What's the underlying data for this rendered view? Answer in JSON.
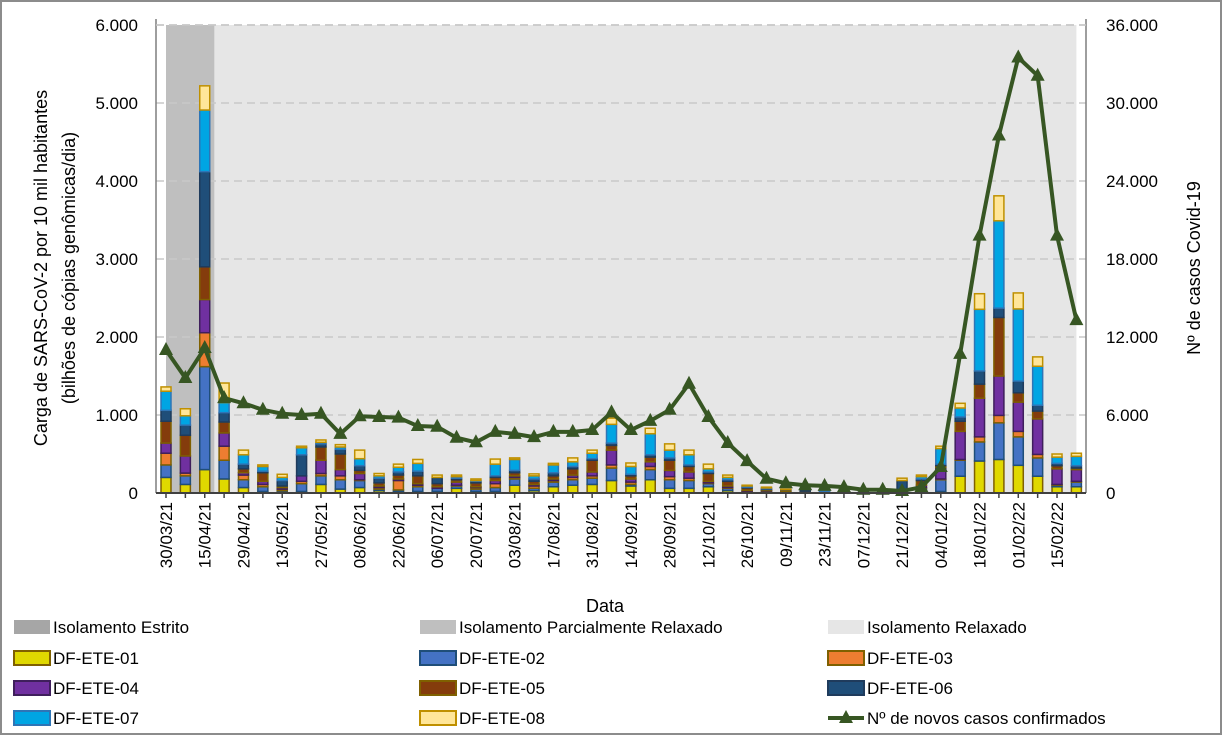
{
  "chart_data": {
    "type": "bar",
    "subtype": "stacked-bar-with-line",
    "xlabel": "Data",
    "ylabel": "Carga de SARS-CoV-2 por 10 mil habitantes",
    "ylabel2": "(bilhões de cópias genômicas/dia)",
    "y2label": "Nº de casos Covid-19",
    "ylim": [
      0,
      6000
    ],
    "y2lim": [
      0,
      36000
    ],
    "yticks": [
      "0",
      "1.000",
      "2.000",
      "3.000",
      "4.000",
      "5.000",
      "6.000"
    ],
    "y2ticks": [
      "0",
      "6.000",
      "12.000",
      "18.000",
      "24.000",
      "30.000",
      "36.000"
    ],
    "grid": "horizontal-dashed",
    "legend_placement": "bottom",
    "categories": [
      "30/03/21",
      "",
      "15/04/21",
      "",
      "29/04/21",
      "",
      "13/05/21",
      "",
      "27/05/21",
      "",
      "08/06/21",
      "",
      "22/06/21",
      "",
      "06/07/21",
      "",
      "20/07/21",
      "",
      "03/08/21",
      "",
      "17/08/21",
      "",
      "31/08/21",
      "",
      "14/09/21",
      "",
      "28/09/21",
      "",
      "12/10/21",
      "",
      "26/10/21",
      "",
      "09/11/21",
      "",
      "23/11/21",
      "",
      "07/12/21",
      "",
      "21/12/21",
      "",
      "04/01/22",
      "",
      "18/01/22",
      "",
      "01/02/22",
      "",
      "15/02/22",
      ""
    ],
    "periods": [
      {
        "name": "Isolamento Estrito",
        "color": "#a6a6a6"
      },
      {
        "name": "Isolamento Parcialmente Relaxado",
        "color": "#bfbfbf",
        "from_index": 0,
        "to_index": 2.5
      },
      {
        "name": "Isolamento Relaxado",
        "color": "#e6e6e6",
        "from_index": 2.5,
        "to_index": 47
      }
    ],
    "series": [
      {
        "name": "DF-ETE-01",
        "color": "#e0d800",
        "stroke": "#7f6000",
        "values": [
          200,
          110,
          300,
          180,
          70,
          20,
          10,
          20,
          110,
          50,
          70,
          30,
          20,
          20,
          20,
          60,
          20,
          20,
          100,
          30,
          80,
          100,
          110,
          160,
          90,
          170,
          60,
          60,
          80,
          30,
          10,
          5,
          5,
          0,
          0,
          0,
          0,
          0,
          0,
          0,
          20,
          215,
          410,
          430,
          355,
          215,
          80,
          80
        ]
      },
      {
        "name": "DF-ETE-02",
        "color": "#4472c4",
        "stroke": "#1f4e79",
        "values": [
          160,
          110,
          1320,
          240,
          100,
          60,
          20,
          100,
          110,
          120,
          90,
          20,
          20,
          60,
          40,
          30,
          30,
          50,
          80,
          30,
          60,
          70,
          80,
          160,
          20,
          130,
          110,
          100,
          40,
          30,
          10,
          20,
          10,
          10,
          5,
          5,
          5,
          5,
          30,
          60,
          150,
          205,
          245,
          470,
          365,
          235,
          20,
          60
        ]
      },
      {
        "name": "DF-ETE-03",
        "color": "#ed7d31",
        "stroke": "#7f6000",
        "values": [
          150,
          35,
          435,
          180,
          60,
          30,
          20,
          30,
          30,
          50,
          10,
          20,
          120,
          20,
          0,
          10,
          20,
          50,
          20,
          30,
          20,
          30,
          30,
          40,
          30,
          40,
          40,
          30,
          10,
          10,
          5,
          5,
          0,
          0,
          0,
          0,
          0,
          0,
          0,
          10,
          10,
          10,
          65,
          95,
          70,
          45,
          10,
          10
        ]
      },
      {
        "name": "DF-ETE-04",
        "color": "#7030a0",
        "stroke": "#3f1f5c",
        "values": [
          130,
          220,
          425,
          170,
          30,
          40,
          20,
          70,
          170,
          80,
          80,
          20,
          20,
          20,
          20,
          40,
          10,
          40,
          20,
          20,
          20,
          30,
          50,
          190,
          40,
          60,
          80,
          80,
          20,
          20,
          10,
          5,
          5,
          10,
          0,
          0,
          0,
          0,
          0,
          30,
          150,
          360,
          495,
          505,
          375,
          455,
          200,
          150
        ]
      },
      {
        "name": "DF-ETE-05",
        "color": "#843c0c",
        "stroke": "#7f6000",
        "values": [
          280,
          265,
          420,
          140,
          50,
          110,
          20,
          0,
          170,
          200,
          40,
          40,
          50,
          100,
          40,
          30,
          50,
          40,
          40,
          40,
          40,
          80,
          150,
          60,
          40,
          60,
          130,
          70,
          100,
          60,
          30,
          10,
          20,
          5,
          5,
          0,
          0,
          0,
          0,
          60,
          20,
          130,
          180,
          750,
          120,
          100,
          40,
          20
        ]
      },
      {
        "name": "DF-ETE-06",
        "color": "#1f4e79",
        "stroke": "#1f3b5c",
        "values": [
          140,
          130,
          1220,
          120,
          60,
          20,
          70,
          270,
          40,
          60,
          60,
          60,
          40,
          60,
          80,
          20,
          20,
          20,
          30,
          30,
          40,
          30,
          20,
          30,
          20,
          30,
          30,
          20,
          20,
          20,
          10,
          10,
          5,
          5,
          5,
          10,
          5,
          5,
          130,
          20,
          20,
          55,
          170,
          120,
          150,
          75,
          30,
          30
        ]
      },
      {
        "name": "DF-ETE-07",
        "color": "#00a5e3",
        "stroke": "#2e75b6",
        "values": [
          245,
          120,
          790,
          130,
          120,
          60,
          40,
          90,
          20,
          30,
          90,
          30,
          60,
          100,
          0,
          20,
          10,
          150,
          140,
          40,
          100,
          60,
          70,
          240,
          100,
          270,
          100,
          130,
          40,
          30,
          15,
          10,
          0,
          0,
          5,
          0,
          0,
          0,
          0,
          30,
          200,
          115,
          790,
          1120,
          925,
          500,
          80,
          120
        ]
      },
      {
        "name": "DF-ETE-08",
        "color": "#ffe699",
        "stroke": "#bf9000",
        "values": [
          55,
          90,
          310,
          250,
          60,
          20,
          40,
          20,
          30,
          30,
          110,
          30,
          40,
          50,
          30,
          20,
          20,
          65,
          20,
          25,
          20,
          50,
          40,
          80,
          45,
          70,
          80,
          60,
          60,
          30,
          10,
          10,
          5,
          0,
          0,
          0,
          0,
          0,
          30,
          20,
          30,
          60,
          200,
          320,
          205,
          120,
          40,
          40
        ]
      }
    ],
    "line": {
      "name": "Nº de novos casos confirmados",
      "axis": "right",
      "color": "#375623",
      "values": [
        11000,
        8850,
        11150,
        7300,
        6900,
        6400,
        6100,
        6000,
        6100,
        4550,
        5900,
        5850,
        5800,
        5150,
        5100,
        4250,
        3900,
        4700,
        4550,
        4300,
        4700,
        4700,
        4850,
        6200,
        4850,
        5550,
        6400,
        8400,
        5850,
        3850,
        2450,
        1100,
        750,
        600,
        550,
        450,
        250,
        250,
        150,
        450,
        2000,
        10700,
        19800,
        27500,
        33500,
        32100,
        19800,
        13300
      ]
    }
  }
}
